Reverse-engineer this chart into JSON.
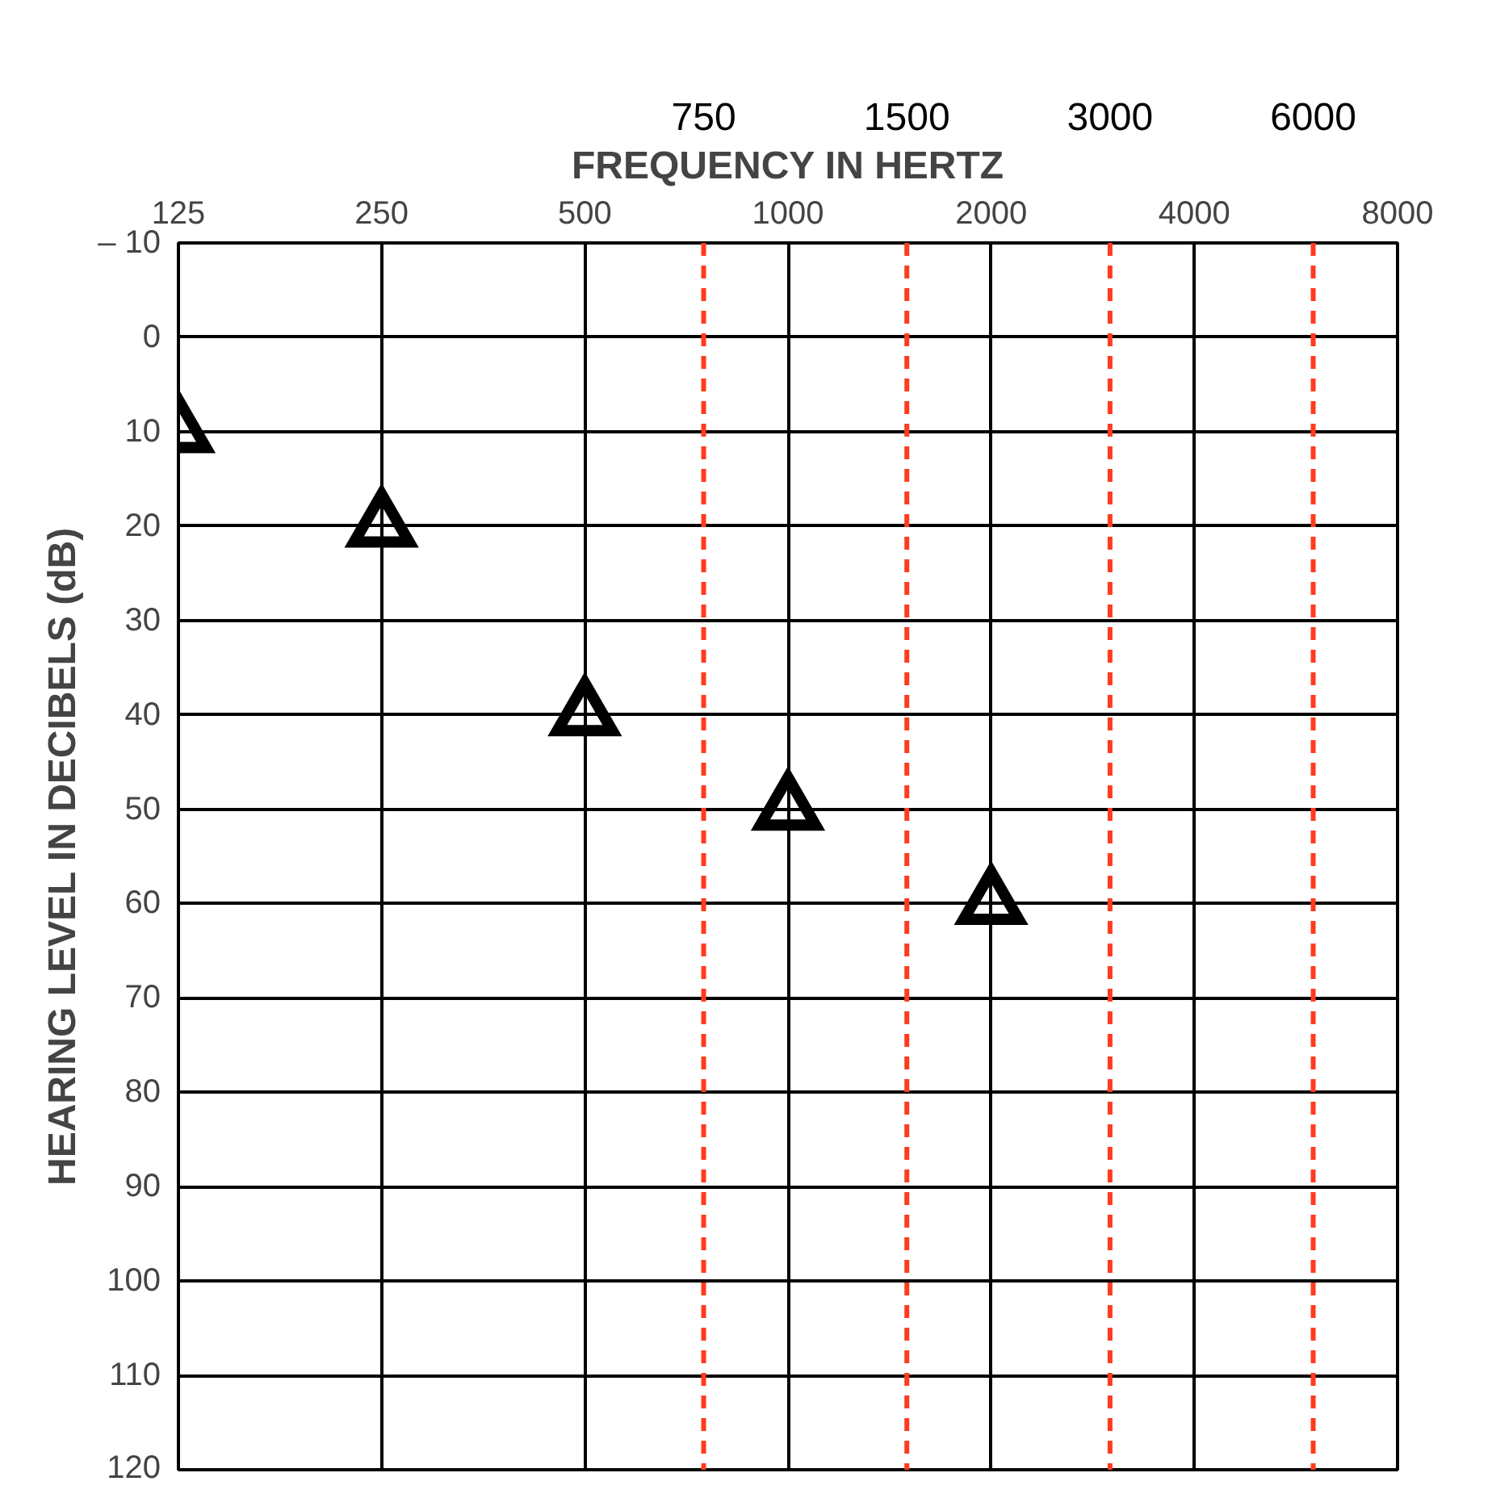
{
  "chart_data": {
    "type": "scatter",
    "xlabel": "FREQUENCY IN HERTZ",
    "ylabel": "HEARING LEVEL IN DECIBELS (dB)",
    "log": "x",
    "x": [
      125,
      250,
      500,
      1000,
      2000
    ],
    "series": [
      {
        "color": "#000000",
        "values": [
          10,
          20,
          40,
          50,
          60
        ]
      }
    ],
    "marker": "triangle",
    "xlim": [
      125,
      8000
    ],
    "xticks": [
      125,
      250,
      500,
      1000,
      2000,
      4000,
      8000
    ],
    "ylim": [
      120,
      -10
    ],
    "yticks": [
      {
        "value": -10,
        "label": "– 10"
      },
      0,
      10,
      20,
      30,
      40,
      50,
      60,
      70,
      80,
      90,
      100,
      110,
      120
    ],
    "grid": true,
    "ref_lines": [
      {
        "axis": "x",
        "value": 750,
        "label": "750",
        "color": "#ff3b1f",
        "line_style": "dashed"
      },
      {
        "axis": "x",
        "value": 1500,
        "label": "1500",
        "color": "#ff3b1f",
        "line_style": "dashed"
      },
      {
        "axis": "x",
        "value": 3000,
        "label": "3000",
        "color": "#ff3b1f",
        "line_style": "dashed"
      },
      {
        "axis": "x",
        "value": 6000,
        "label": "6000",
        "color": "#ff3b1f",
        "line_style": "dashed"
      }
    ]
  }
}
